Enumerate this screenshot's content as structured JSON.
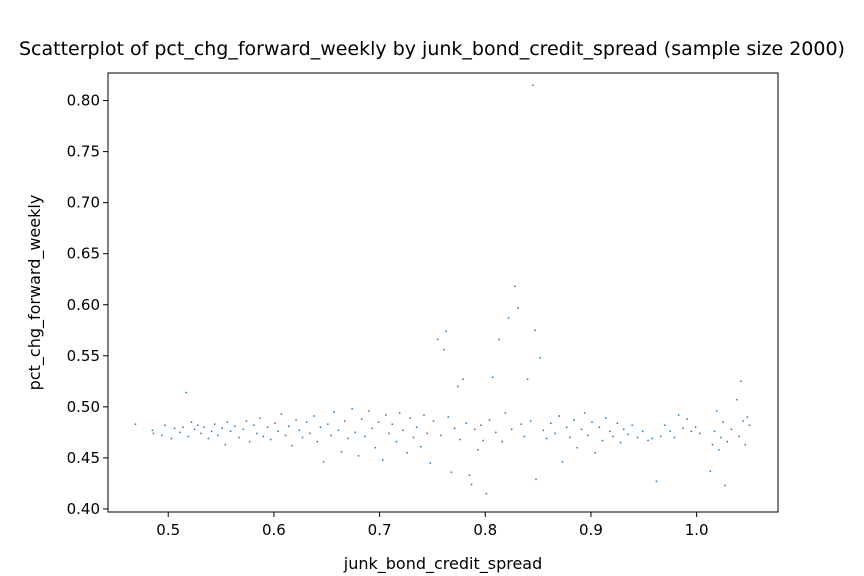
{
  "chart_data": {
    "type": "scatter",
    "title": "Scatterplot of pct_chg_forward_weekly by junk_bond_credit_spread (sample size 2000)",
    "xlabel": "junk_bond_credit_spread",
    "ylabel": "pct_chg_forward_weekly",
    "xlim": [
      0.443,
      1.077
    ],
    "ylim": [
      0.397,
      0.827
    ],
    "xticks": [
      0.5,
      0.6,
      0.7,
      0.8,
      0.9,
      1.0
    ],
    "xtick_labels": [
      "0.5",
      "0.6",
      "0.7",
      "0.8",
      "0.9",
      "1.0"
    ],
    "yticks": [
      0.4,
      0.45,
      0.5,
      0.55,
      0.6,
      0.65,
      0.7,
      0.75,
      0.8
    ],
    "ytick_labels": [
      "0.40",
      "0.45",
      "0.50",
      "0.55",
      "0.60",
      "0.65",
      "0.70",
      "0.75",
      "0.80"
    ],
    "grid": false,
    "point_color": "#1f77b4",
    "series": [
      {
        "points": [
          [
            0.469,
            0.483
          ],
          [
            0.485,
            0.477
          ],
          [
            0.486,
            0.474
          ],
          [
            0.494,
            0.472
          ],
          [
            0.497,
            0.482
          ],
          [
            0.503,
            0.469
          ],
          [
            0.506,
            0.479
          ],
          [
            0.511,
            0.475
          ],
          [
            0.514,
            0.48
          ],
          [
            0.517,
            0.514
          ],
          [
            0.519,
            0.471
          ],
          [
            0.522,
            0.485
          ],
          [
            0.525,
            0.478
          ],
          [
            0.528,
            0.482
          ],
          [
            0.531,
            0.474
          ],
          [
            0.534,
            0.48
          ],
          [
            0.538,
            0.469
          ],
          [
            0.541,
            0.476
          ],
          [
            0.544,
            0.483
          ],
          [
            0.547,
            0.472
          ],
          [
            0.551,
            0.479
          ],
          [
            0.554,
            0.463
          ],
          [
            0.556,
            0.485
          ],
          [
            0.559,
            0.476
          ],
          [
            0.563,
            0.481
          ],
          [
            0.567,
            0.47
          ],
          [
            0.571,
            0.478
          ],
          [
            0.574,
            0.486
          ],
          [
            0.577,
            0.466
          ],
          [
            0.581,
            0.482
          ],
          [
            0.584,
            0.474
          ],
          [
            0.587,
            0.489
          ],
          [
            0.59,
            0.471
          ],
          [
            0.594,
            0.48
          ],
          [
            0.597,
            0.468
          ],
          [
            0.601,
            0.484
          ],
          [
            0.604,
            0.476
          ],
          [
            0.607,
            0.493
          ],
          [
            0.611,
            0.472
          ],
          [
            0.614,
            0.481
          ],
          [
            0.617,
            0.462
          ],
          [
            0.621,
            0.487
          ],
          [
            0.624,
            0.477
          ],
          [
            0.627,
            0.47
          ],
          [
            0.631,
            0.485
          ],
          [
            0.634,
            0.474
          ],
          [
            0.638,
            0.491
          ],
          [
            0.641,
            0.466
          ],
          [
            0.644,
            0.48
          ],
          [
            0.647,
            0.446
          ],
          [
            0.651,
            0.483
          ],
          [
            0.654,
            0.472
          ],
          [
            0.657,
            0.495
          ],
          [
            0.661,
            0.477
          ],
          [
            0.664,
            0.456
          ],
          [
            0.667,
            0.486
          ],
          [
            0.67,
            0.469
          ],
          [
            0.674,
            0.498
          ],
          [
            0.677,
            0.475
          ],
          [
            0.68,
            0.452
          ],
          [
            0.683,
            0.488
          ],
          [
            0.686,
            0.471
          ],
          [
            0.69,
            0.496
          ],
          [
            0.693,
            0.479
          ],
          [
            0.696,
            0.46
          ],
          [
            0.699,
            0.485
          ],
          [
            0.703,
            0.448
          ],
          [
            0.706,
            0.492
          ],
          [
            0.709,
            0.474
          ],
          [
            0.712,
            0.483
          ],
          [
            0.716,
            0.466
          ],
          [
            0.719,
            0.494
          ],
          [
            0.722,
            0.477
          ],
          [
            0.726,
            0.455
          ],
          [
            0.729,
            0.489
          ],
          [
            0.732,
            0.47
          ],
          [
            0.735,
            0.48
          ],
          [
            0.739,
            0.461
          ],
          [
            0.742,
            0.492
          ],
          [
            0.745,
            0.474
          ],
          [
            0.748,
            0.445
          ],
          [
            0.751,
            0.486
          ],
          [
            0.755,
            0.566
          ],
          [
            0.758,
            0.472
          ],
          [
            0.761,
            0.556
          ],
          [
            0.763,
            0.574
          ],
          [
            0.765,
            0.49
          ],
          [
            0.768,
            0.436
          ],
          [
            0.771,
            0.479
          ],
          [
            0.774,
            0.52
          ],
          [
            0.776,
            0.468
          ],
          [
            0.779,
            0.527
          ],
          [
            0.782,
            0.484
          ],
          [
            0.785,
            0.433
          ],
          [
            0.787,
            0.424
          ],
          [
            0.79,
            0.478
          ],
          [
            0.793,
            0.458
          ],
          [
            0.796,
            0.482
          ],
          [
            0.798,
            0.467
          ],
          [
            0.801,
            0.415
          ],
          [
            0.804,
            0.487
          ],
          [
            0.807,
            0.529
          ],
          [
            0.81,
            0.475
          ],
          [
            0.813,
            0.566
          ],
          [
            0.816,
            0.466
          ],
          [
            0.819,
            0.494
          ],
          [
            0.822,
            0.587
          ],
          [
            0.825,
            0.478
          ],
          [
            0.828,
            0.618
          ],
          [
            0.831,
            0.597
          ],
          [
            0.834,
            0.483
          ],
          [
            0.837,
            0.471
          ],
          [
            0.84,
            0.527
          ],
          [
            0.843,
            0.486
          ],
          [
            0.845,
            0.815
          ],
          [
            0.847,
            0.575
          ],
          [
            0.848,
            0.429
          ],
          [
            0.852,
            0.548
          ],
          [
            0.855,
            0.477
          ],
          [
            0.858,
            0.469
          ],
          [
            0.862,
            0.484
          ],
          [
            0.866,
            0.474
          ],
          [
            0.87,
            0.491
          ],
          [
            0.873,
            0.446
          ],
          [
            0.877,
            0.48
          ],
          [
            0.88,
            0.47
          ],
          [
            0.884,
            0.487
          ],
          [
            0.887,
            0.46
          ],
          [
            0.891,
            0.478
          ],
          [
            0.894,
            0.494
          ],
          [
            0.897,
            0.472
          ],
          [
            0.901,
            0.485
          ],
          [
            0.904,
            0.455
          ],
          [
            0.908,
            0.48
          ],
          [
            0.911,
            0.467
          ],
          [
            0.914,
            0.489
          ],
          [
            0.918,
            0.476
          ],
          [
            0.921,
            0.471
          ],
          [
            0.925,
            0.484
          ],
          [
            0.928,
            0.465
          ],
          [
            0.931,
            0.478
          ],
          [
            0.935,
            0.473
          ],
          [
            0.939,
            0.482
          ],
          [
            0.944,
            0.47
          ],
          [
            0.949,
            0.476
          ],
          [
            0.954,
            0.467
          ],
          [
            0.958,
            0.469
          ],
          [
            0.962,
            0.427
          ],
          [
            0.966,
            0.471
          ],
          [
            0.97,
            0.482
          ],
          [
            0.975,
            0.476
          ],
          [
            0.979,
            0.47
          ],
          [
            0.983,
            0.492
          ],
          [
            0.987,
            0.479
          ],
          [
            0.991,
            0.488
          ],
          [
            0.995,
            0.476
          ],
          [
            0.999,
            0.48
          ],
          [
            1.003,
            0.474
          ],
          [
            1.013,
            0.437
          ],
          [
            1.015,
            0.463
          ],
          [
            1.017,
            0.476
          ],
          [
            1.019,
            0.496
          ],
          [
            1.021,
            0.458
          ],
          [
            1.023,
            0.47
          ],
          [
            1.025,
            0.485
          ],
          [
            1.027,
            0.423
          ],
          [
            1.029,
            0.466
          ],
          [
            1.033,
            0.478
          ],
          [
            1.038,
            0.507
          ],
          [
            1.04,
            0.471
          ],
          [
            1.042,
            0.525
          ],
          [
            1.044,
            0.486
          ],
          [
            1.046,
            0.463
          ],
          [
            1.048,
            0.49
          ],
          [
            1.05,
            0.482
          ]
        ]
      }
    ]
  }
}
